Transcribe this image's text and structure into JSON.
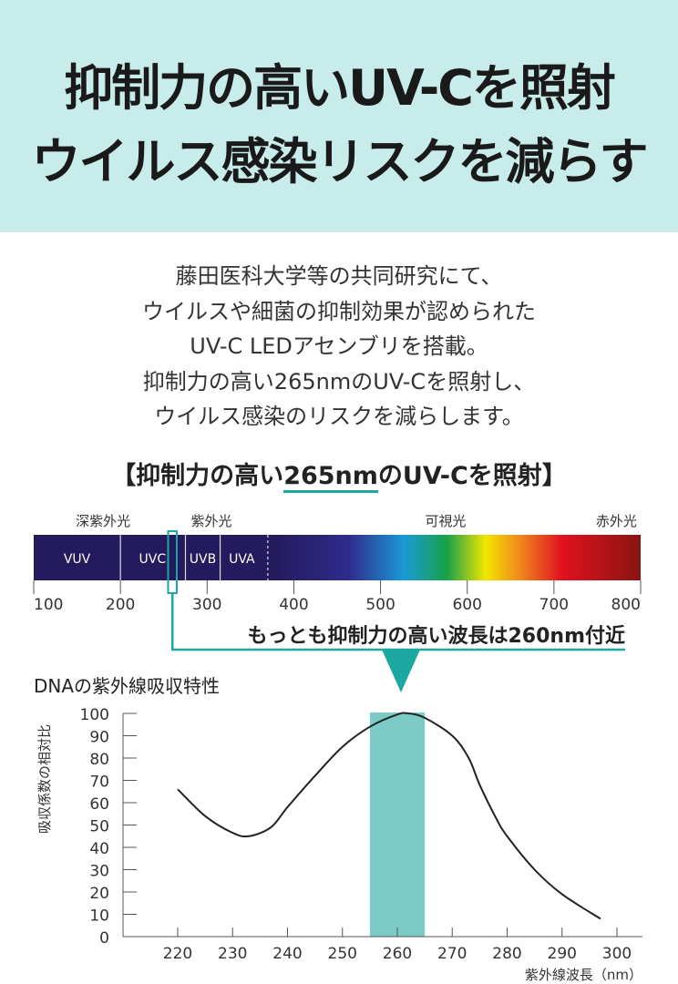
{
  "banner": {
    "line1": "抑制力の高いUV-Cを照射",
    "line2": "ウイルス感染リスクを減らす"
  },
  "body": [
    "藤田医科大学等の共同研究にて、",
    "ウイルスや細菌の抑制効果が認められた",
    "UV-C LEDアセンブリを搭載。",
    "抑制力の高い265nmのUV-Cを照射し、",
    "ウイルス感染のリスクを減らします。"
  ],
  "heading": {
    "pre": "【抑制力の高い",
    "highlight": "265nm",
    "post": "のUV-Cを照射】"
  },
  "spectrum": {
    "region_labels": [
      {
        "text": "深紫外光",
        "nm": 180
      },
      {
        "text": "紫外光",
        "nm": 305
      },
      {
        "text": "可視光",
        "nm": 575
      },
      {
        "text": "赤外光",
        "nm": 772
      }
    ],
    "bands": [
      {
        "text": "VUV",
        "nm": 150
      },
      {
        "text": "UVC",
        "nm": 237
      },
      {
        "text": "UVB",
        "nm": 295
      },
      {
        "text": "UVA",
        "nm": 340
      }
    ],
    "ticks": [
      "100",
      "200",
      "300",
      "400",
      "500",
      "600",
      "700",
      "800"
    ],
    "callout": "もっとも抑制力の高い波長は260nm付近",
    "accent": "#1aa8a0"
  },
  "chart_data": {
    "type": "line",
    "title": "DNAの紫外線吸収特性",
    "xlabel": "紫外線波長（nm）",
    "ylabel": "吸収係数の相対比",
    "xlim": [
      210,
      302
    ],
    "ylim": [
      0,
      100
    ],
    "xticks": [
      220,
      230,
      240,
      250,
      260,
      270,
      280,
      290,
      300
    ],
    "yticks": [
      0,
      10,
      20,
      30,
      40,
      50,
      60,
      70,
      80,
      90,
      100
    ],
    "highlight_band": [
      255,
      265
    ],
    "x": [
      220,
      225,
      230,
      233,
      237,
      240,
      245,
      250,
      255,
      260,
      262,
      265,
      270,
      273,
      275,
      278,
      280,
      285,
      290,
      297
    ],
    "y": [
      66,
      54,
      46.5,
      45,
      49,
      58,
      72,
      85,
      94,
      99.5,
      100,
      98,
      90,
      80,
      68,
      53,
      45,
      30,
      19,
      8
    ],
    "band_color": "#7ccbc6"
  }
}
